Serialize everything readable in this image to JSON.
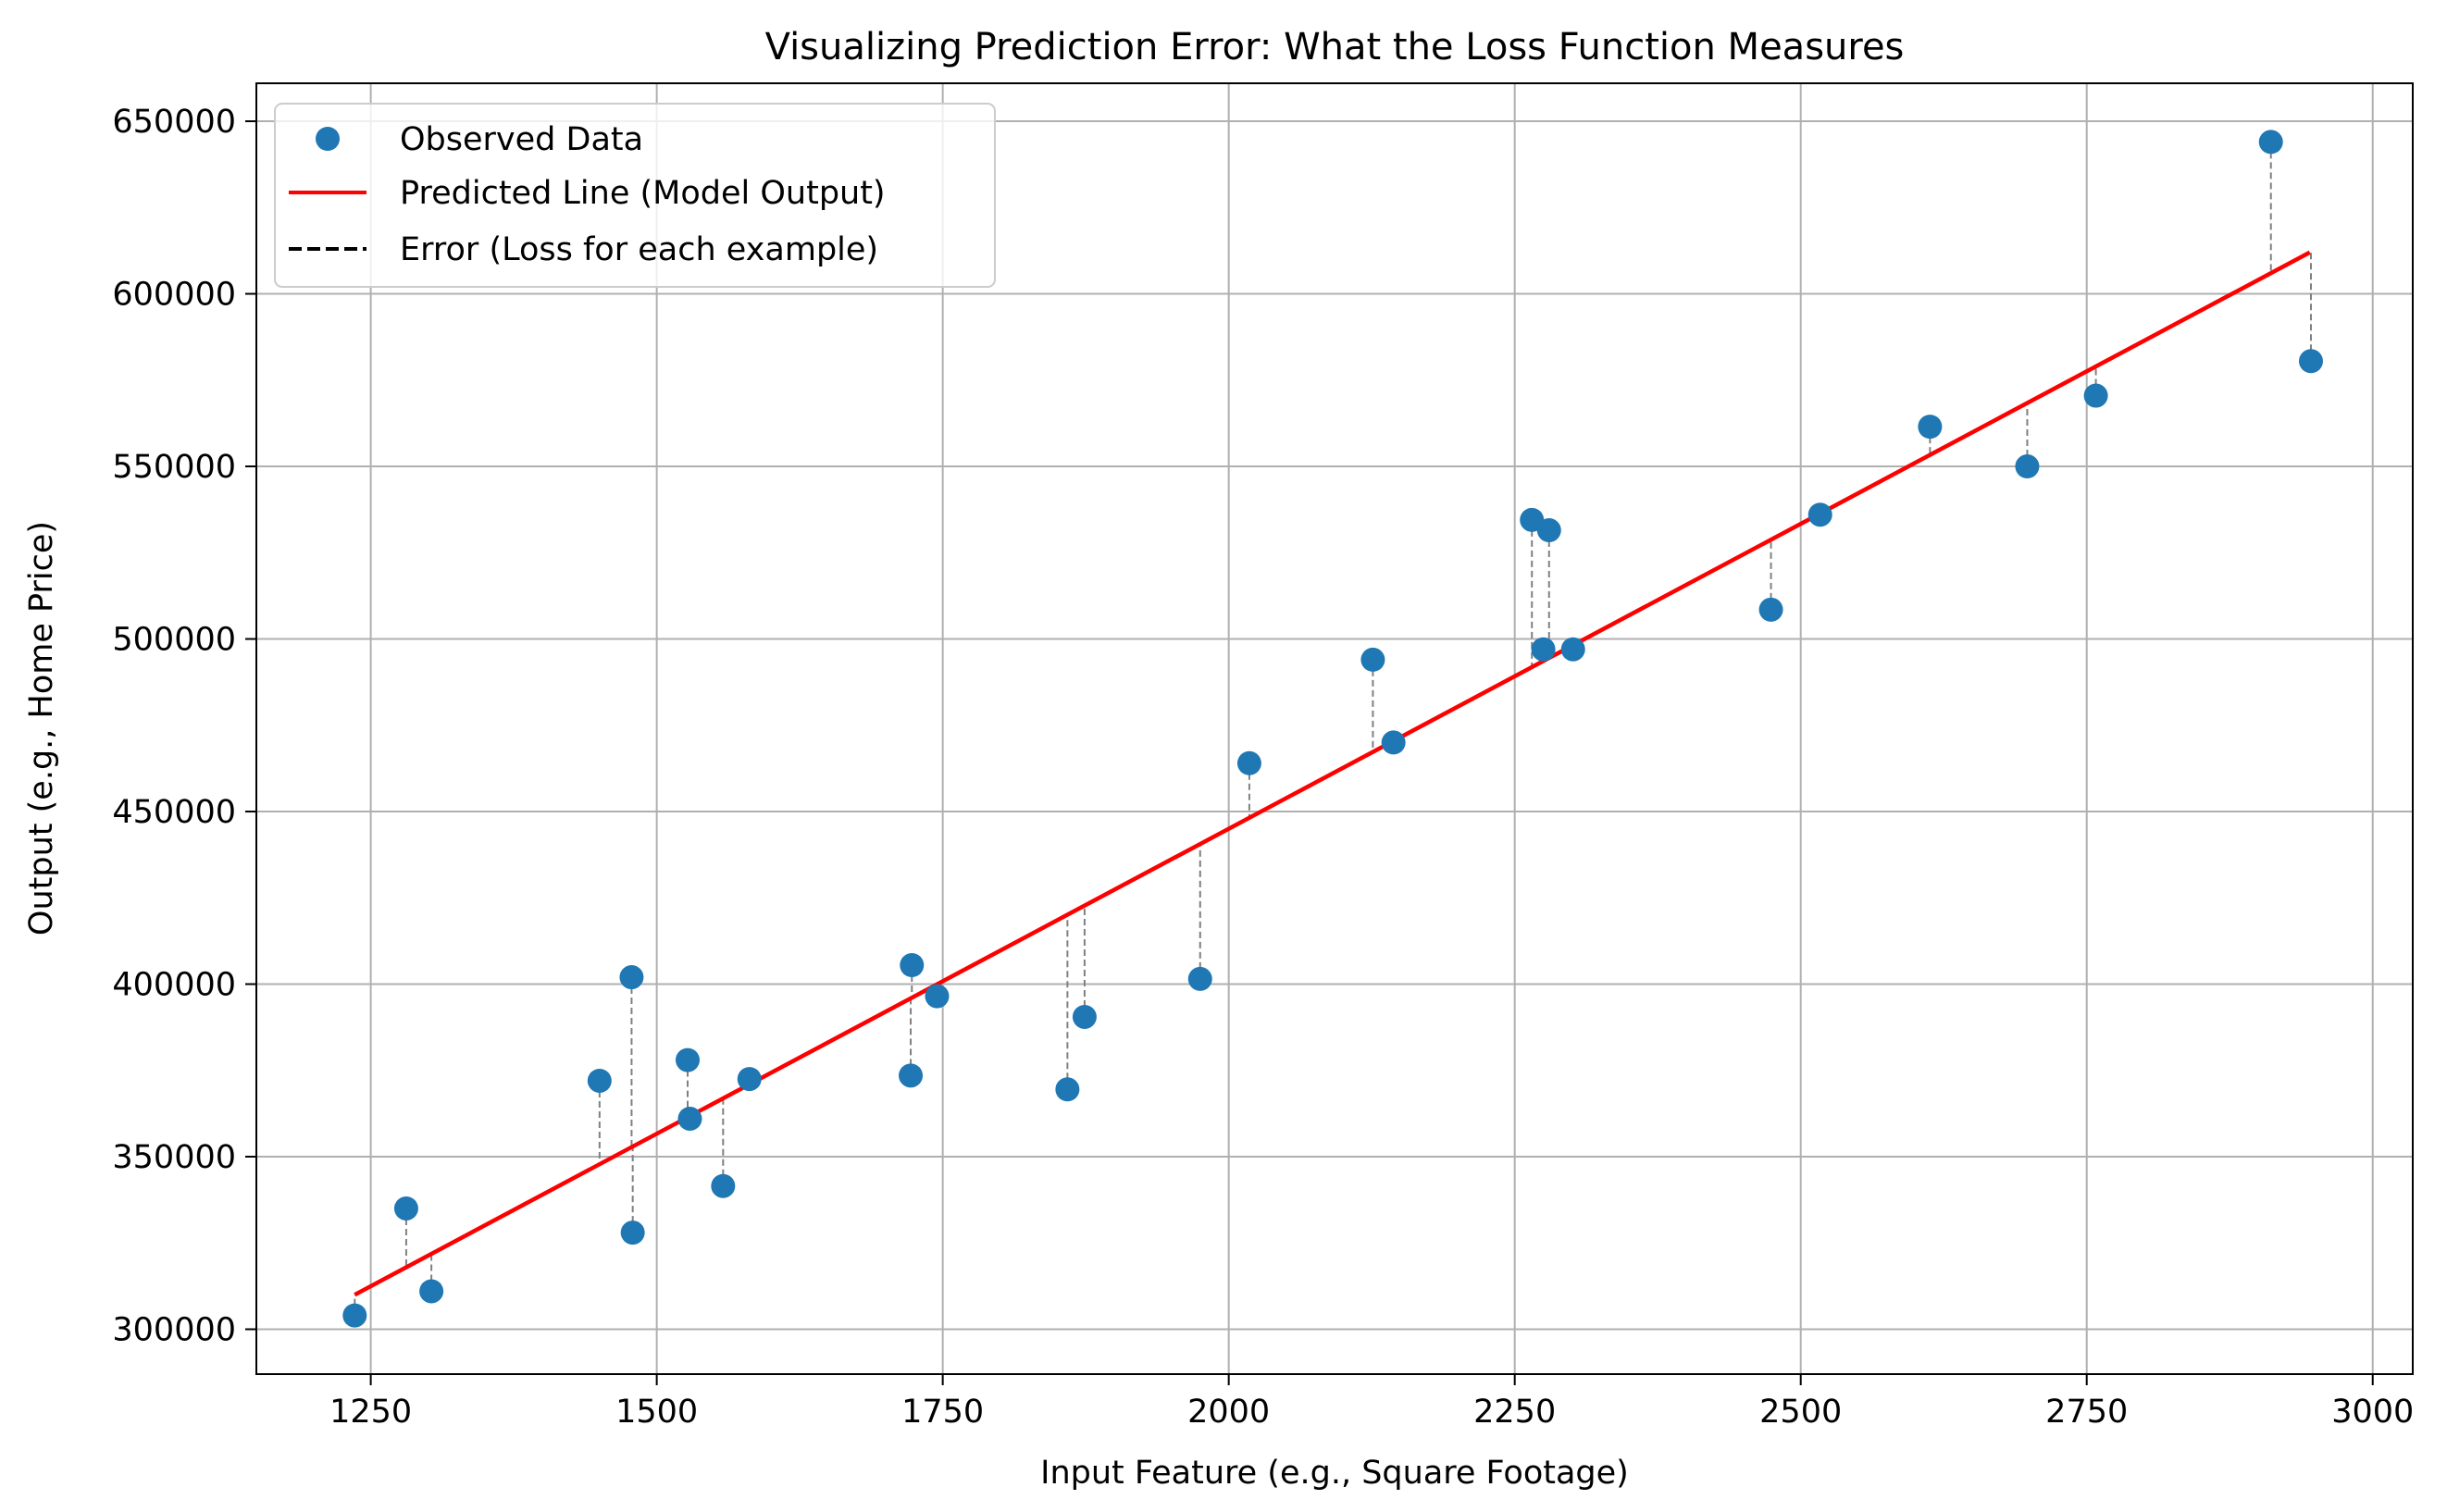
{
  "chart_data": {
    "type": "scatter",
    "title": "Visualizing Prediction Error: What the Loss Function Measures",
    "xlabel": "Input Feature (e.g., Square Footage)",
    "ylabel": "Output (e.g., Home Price)",
    "xlim": [
      1150,
      3035
    ],
    "ylim": [
      287000,
      661000
    ],
    "x_ticks": [
      1250,
      1500,
      1750,
      2000,
      2250,
      2500,
      2750,
      3000
    ],
    "y_ticks": [
      300000,
      350000,
      400000,
      450000,
      500000,
      550000,
      600000,
      650000
    ],
    "grid": true,
    "legend_position": "top-left",
    "legend": {
      "observed": "Observed Data",
      "predicted": "Predicted Line (Model Output)",
      "error": "Error (Loss for each example)"
    },
    "colors": {
      "observed": "#1f77b4",
      "predicted": "#ff0000",
      "error": "#808080",
      "grid": "#b0b0b0"
    },
    "line": {
      "x": [
        1236,
        2945
      ],
      "y": [
        310000,
        612000
      ]
    },
    "points": [
      {
        "x": 1236,
        "y": 304000
      },
      {
        "x": 1281,
        "y": 335000
      },
      {
        "x": 1303,
        "y": 311000
      },
      {
        "x": 1450,
        "y": 372000
      },
      {
        "x": 1478,
        "y": 402000
      },
      {
        "x": 1479,
        "y": 328000
      },
      {
        "x": 1527,
        "y": 378000
      },
      {
        "x": 1529,
        "y": 361000
      },
      {
        "x": 1558,
        "y": 341500
      },
      {
        "x": 1581,
        "y": 372500
      },
      {
        "x": 1722,
        "y": 373500
      },
      {
        "x": 1723,
        "y": 405500
      },
      {
        "x": 1745,
        "y": 396500
      },
      {
        "x": 1859,
        "y": 369500
      },
      {
        "x": 1874,
        "y": 390500
      },
      {
        "x": 1975,
        "y": 401500
      },
      {
        "x": 2018,
        "y": 464000
      },
      {
        "x": 2126,
        "y": 494000
      },
      {
        "x": 2144,
        "y": 470000
      },
      {
        "x": 2265,
        "y": 534500
      },
      {
        "x": 2275,
        "y": 497000
      },
      {
        "x": 2280,
        "y": 531500
      },
      {
        "x": 2301,
        "y": 497000
      },
      {
        "x": 2474,
        "y": 508500
      },
      {
        "x": 2517,
        "y": 536000
      },
      {
        "x": 2613,
        "y": 561500
      },
      {
        "x": 2698,
        "y": 550000
      },
      {
        "x": 2758,
        "y": 570500
      },
      {
        "x": 2911,
        "y": 644000
      },
      {
        "x": 2946,
        "y": 580500
      }
    ]
  }
}
